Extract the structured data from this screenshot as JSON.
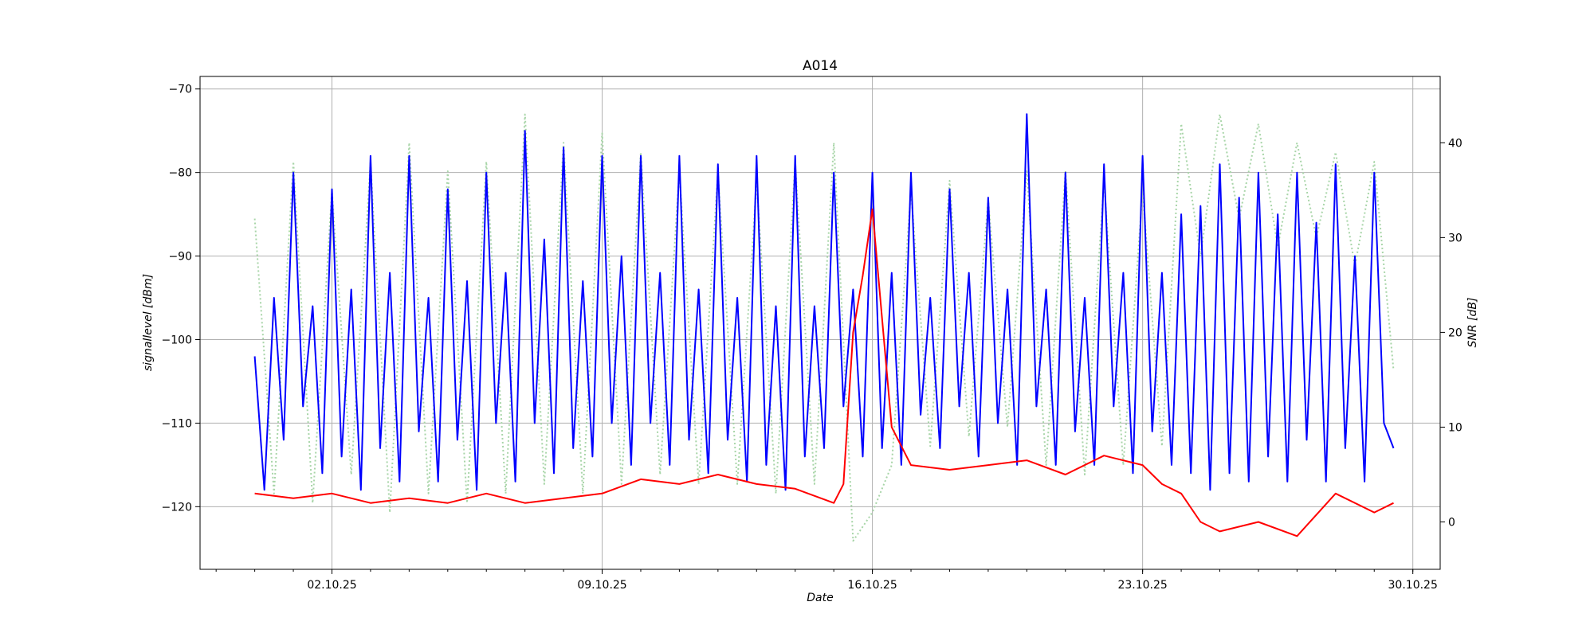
{
  "chart_data": {
    "type": "line",
    "title": "A014",
    "xlabel": "Date",
    "ylabel_left": "signallevel [dBm]",
    "ylabel_right": "SNR [dB]",
    "x_start": "2025-09-30",
    "x_end": "2025-10-30",
    "xlim": [
      "2025-09-28T14:00",
      "2025-10-30T17:00"
    ],
    "ylim_left": [
      -127.5,
      -68.5
    ],
    "ylim_right": [
      -5,
      47
    ],
    "grid": true,
    "x_ticks": [
      {
        "date": "2025-10-02",
        "label": "02.10.25"
      },
      {
        "date": "2025-10-09",
        "label": "09.10.25"
      },
      {
        "date": "2025-10-16",
        "label": "16.10.25"
      },
      {
        "date": "2025-10-23",
        "label": "23.10.25"
      },
      {
        "date": "2025-10-30",
        "label": "30.10.25"
      }
    ],
    "y_ticks_left": [
      -120,
      -110,
      -100,
      -90,
      -80,
      -70
    ],
    "y_ticks_left_labels": [
      "−120",
      "−110",
      "−100",
      "−90",
      "−80",
      "−70"
    ],
    "y_ticks_right": [
      0,
      10,
      20,
      30,
      40
    ],
    "series": [
      {
        "axis": "left",
        "color": "#0000ff",
        "style": "solid",
        "x": [
          "2025-09-30T00:00",
          "2025-09-30T06:00",
          "2025-09-30T12:00",
          "2025-09-30T18:00",
          "2025-10-01T00:00",
          "2025-10-01T06:00",
          "2025-10-01T12:00",
          "2025-10-01T18:00",
          "2025-10-02T00:00",
          "2025-10-02T06:00",
          "2025-10-02T12:00",
          "2025-10-02T18:00",
          "2025-10-03T00:00",
          "2025-10-03T06:00",
          "2025-10-03T12:00",
          "2025-10-03T18:00",
          "2025-10-04T00:00",
          "2025-10-04T06:00",
          "2025-10-04T12:00",
          "2025-10-04T18:00",
          "2025-10-05T00:00",
          "2025-10-05T06:00",
          "2025-10-05T12:00",
          "2025-10-05T18:00",
          "2025-10-06T00:00",
          "2025-10-06T06:00",
          "2025-10-06T12:00",
          "2025-10-06T18:00",
          "2025-10-07T00:00",
          "2025-10-07T06:00",
          "2025-10-07T12:00",
          "2025-10-07T18:00",
          "2025-10-08T00:00",
          "2025-10-08T06:00",
          "2025-10-08T12:00",
          "2025-10-08T18:00",
          "2025-10-09T00:00",
          "2025-10-09T06:00",
          "2025-10-09T12:00",
          "2025-10-09T18:00",
          "2025-10-10T00:00",
          "2025-10-10T06:00",
          "2025-10-10T12:00",
          "2025-10-10T18:00",
          "2025-10-11T00:00",
          "2025-10-11T06:00",
          "2025-10-11T12:00",
          "2025-10-11T18:00",
          "2025-10-12T00:00",
          "2025-10-12T06:00",
          "2025-10-12T12:00",
          "2025-10-12T18:00",
          "2025-10-13T00:00",
          "2025-10-13T06:00",
          "2025-10-13T12:00",
          "2025-10-13T18:00",
          "2025-10-14T00:00",
          "2025-10-14T06:00",
          "2025-10-14T12:00",
          "2025-10-14T18:00",
          "2025-10-15T00:00",
          "2025-10-15T06:00",
          "2025-10-15T12:00",
          "2025-10-15T18:00",
          "2025-10-16T00:00",
          "2025-10-16T06:00",
          "2025-10-16T12:00",
          "2025-10-16T18:00",
          "2025-10-17T00:00",
          "2025-10-17T06:00",
          "2025-10-17T12:00",
          "2025-10-17T18:00",
          "2025-10-18T00:00",
          "2025-10-18T06:00",
          "2025-10-18T12:00",
          "2025-10-18T18:00",
          "2025-10-19T00:00",
          "2025-10-19T06:00",
          "2025-10-19T12:00",
          "2025-10-19T18:00",
          "2025-10-20T00:00",
          "2025-10-20T06:00",
          "2025-10-20T12:00",
          "2025-10-20T18:00",
          "2025-10-21T00:00",
          "2025-10-21T06:00",
          "2025-10-21T12:00",
          "2025-10-21T18:00",
          "2025-10-22T00:00",
          "2025-10-22T06:00",
          "2025-10-22T12:00",
          "2025-10-22T18:00",
          "2025-10-23T00:00",
          "2025-10-23T06:00",
          "2025-10-23T12:00",
          "2025-10-23T18:00",
          "2025-10-24T00:00",
          "2025-10-24T06:00",
          "2025-10-24T12:00",
          "2025-10-24T18:00",
          "2025-10-25T00:00",
          "2025-10-25T06:00",
          "2025-10-25T12:00",
          "2025-10-25T18:00",
          "2025-10-26T00:00",
          "2025-10-26T06:00",
          "2025-10-26T12:00",
          "2025-10-26T18:00",
          "2025-10-27T00:00",
          "2025-10-27T06:00",
          "2025-10-27T12:00",
          "2025-10-27T18:00",
          "2025-10-28T00:00",
          "2025-10-28T06:00",
          "2025-10-28T12:00",
          "2025-10-28T18:00",
          "2025-10-29T00:00",
          "2025-10-29T06:00",
          "2025-10-29T12:00"
        ],
        "y": [
          -102,
          -118,
          -95,
          -112,
          -80,
          -108,
          -96,
          -116,
          -82,
          -114,
          -94,
          -118,
          -78,
          -113,
          -92,
          -117,
          -78,
          -111,
          -95,
          -117,
          -82,
          -112,
          -93,
          -118,
          -80,
          -110,
          -92,
          -117,
          -75,
          -110,
          -88,
          -116,
          -77,
          -113,
          -93,
          -114,
          -78,
          -110,
          -90,
          -115,
          -78,
          -110,
          -92,
          -115,
          -78,
          -112,
          -94,
          -116,
          -79,
          -112,
          -95,
          -117,
          -78,
          -115,
          -96,
          -118,
          -78,
          -114,
          -96,
          -113,
          -80,
          -108,
          -94,
          -114,
          -80,
          -113,
          -92,
          -115,
          -80,
          -109,
          -95,
          -113,
          -82,
          -108,
          -92,
          -114,
          -83,
          -110,
          -94,
          -115,
          -73,
          -108,
          -94,
          -115,
          -80,
          -111,
          -95,
          -115,
          -79,
          -108,
          -92,
          -116,
          -78,
          -111,
          -92,
          -115,
          -85,
          -116,
          -84,
          -118,
          -79,
          -116,
          -83,
          -117,
          -80,
          -114,
          -85,
          -117,
          -80,
          -112,
          -86,
          -117,
          -79,
          -113,
          -90,
          -117,
          -80,
          -110,
          -113
        ]
      },
      {
        "axis": "right",
        "color": "#ff0000",
        "style": "solid",
        "x": [
          "2025-09-30T00:00",
          "2025-10-01T00:00",
          "2025-10-02T00:00",
          "2025-10-03T00:00",
          "2025-10-04T00:00",
          "2025-10-05T00:00",
          "2025-10-06T00:00",
          "2025-10-07T00:00",
          "2025-10-08T00:00",
          "2025-10-09T00:00",
          "2025-10-10T00:00",
          "2025-10-11T00:00",
          "2025-10-12T00:00",
          "2025-10-13T00:00",
          "2025-10-14T00:00",
          "2025-10-15T00:00",
          "2025-10-15T06:00",
          "2025-10-15T12:00",
          "2025-10-15T18:00",
          "2025-10-16T00:00",
          "2025-10-16T12:00",
          "2025-10-17T00:00",
          "2025-10-18T00:00",
          "2025-10-19T00:00",
          "2025-10-20T00:00",
          "2025-10-21T00:00",
          "2025-10-22T00:00",
          "2025-10-23T00:00",
          "2025-10-23T12:00",
          "2025-10-24T00:00",
          "2025-10-24T12:00",
          "2025-10-25T00:00",
          "2025-10-26T00:00",
          "2025-10-27T00:00",
          "2025-10-28T00:00",
          "2025-10-29T00:00",
          "2025-10-29T12:00"
        ],
        "y": [
          3,
          2.5,
          3,
          2,
          2.5,
          2,
          3,
          2,
          2.5,
          3,
          4.5,
          4,
          5,
          4,
          3.5,
          2,
          4,
          20,
          26,
          33,
          10,
          6,
          5.5,
          6,
          6.5,
          5,
          7,
          6,
          4,
          3,
          0,
          -1,
          0,
          -1.5,
          3,
          1,
          2
        ]
      },
      {
        "axis": "right",
        "color": "#a8d5a8",
        "style": "dotted",
        "x": [
          "2025-09-30T00:00",
          "2025-09-30T12:00",
          "2025-10-01T00:00",
          "2025-10-01T12:00",
          "2025-10-02T00:00",
          "2025-10-02T12:00",
          "2025-10-03T00:00",
          "2025-10-03T12:00",
          "2025-10-04T00:00",
          "2025-10-04T12:00",
          "2025-10-05T00:00",
          "2025-10-05T12:00",
          "2025-10-06T00:00",
          "2025-10-06T12:00",
          "2025-10-07T00:00",
          "2025-10-07T12:00",
          "2025-10-08T00:00",
          "2025-10-08T12:00",
          "2025-10-09T00:00",
          "2025-10-09T12:00",
          "2025-10-10T00:00",
          "2025-10-10T12:00",
          "2025-10-11T00:00",
          "2025-10-11T12:00",
          "2025-10-12T00:00",
          "2025-10-12T12:00",
          "2025-10-13T00:00",
          "2025-10-13T12:00",
          "2025-10-14T00:00",
          "2025-10-14T12:00",
          "2025-10-15T00:00",
          "2025-10-15T12:00",
          "2025-10-16T00:00",
          "2025-10-16T12:00",
          "2025-10-17T00:00",
          "2025-10-17T12:00",
          "2025-10-18T00:00",
          "2025-10-18T12:00",
          "2025-10-19T00:00",
          "2025-10-19T12:00",
          "2025-10-20T00:00",
          "2025-10-20T12:00",
          "2025-10-21T00:00",
          "2025-10-21T12:00",
          "2025-10-22T00:00",
          "2025-10-22T12:00",
          "2025-10-23T00:00",
          "2025-10-23T12:00",
          "2025-10-24T00:00",
          "2025-10-24T12:00",
          "2025-10-25T00:00",
          "2025-10-25T12:00",
          "2025-10-26T00:00",
          "2025-10-26T12:00",
          "2025-10-27T00:00",
          "2025-10-27T12:00",
          "2025-10-28T00:00",
          "2025-10-28T12:00",
          "2025-10-29T00:00",
          "2025-10-29T12:00"
        ],
        "y": [
          32,
          3,
          38,
          2,
          35,
          5,
          38,
          1,
          40,
          3,
          37,
          2,
          38,
          3,
          43,
          4,
          40,
          3,
          41,
          4,
          39,
          5,
          37,
          4,
          37,
          4,
          36,
          3,
          38,
          4,
          40,
          -2,
          1,
          6,
          35,
          8,
          36,
          9,
          34,
          10,
          37,
          6,
          37,
          5,
          36,
          6,
          35,
          8,
          42,
          28,
          43,
          32,
          42,
          29,
          40,
          30,
          39,
          27,
          38,
          16
        ]
      }
    ]
  }
}
